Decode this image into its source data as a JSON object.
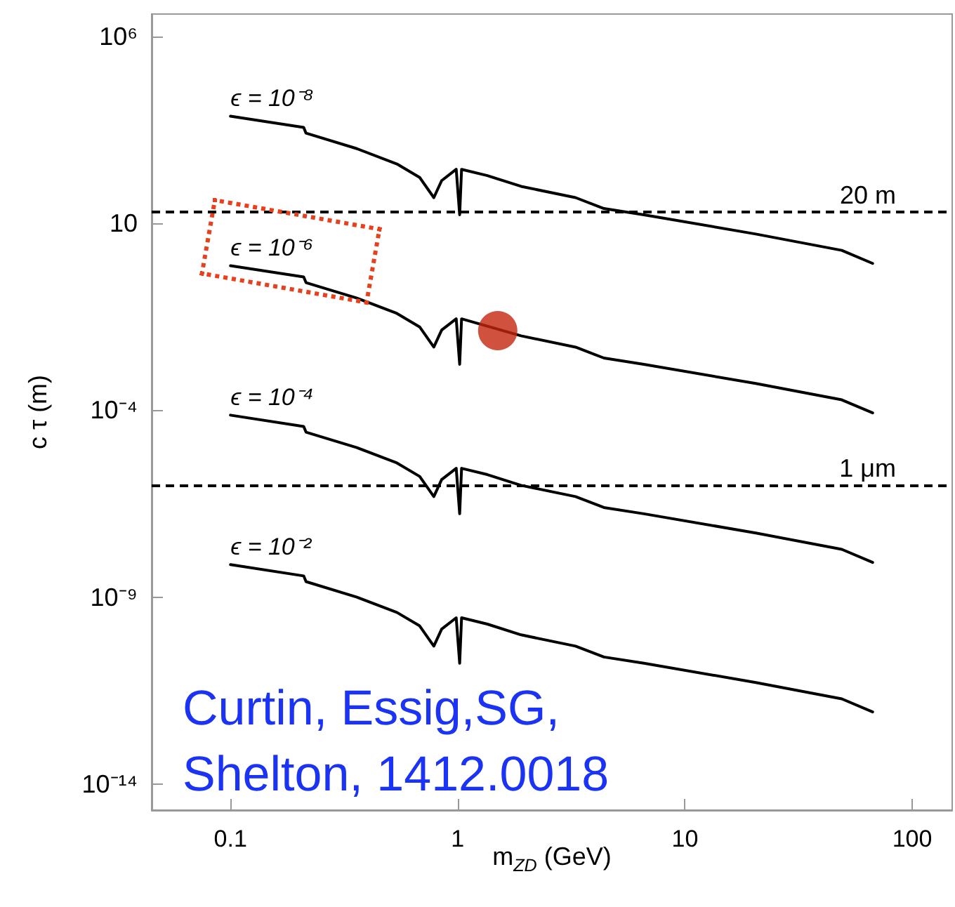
{
  "chart_data": {
    "type": "line",
    "xlabel": "m$_{ZD}$ (GeV)",
    "ylabel": "c τ (m)",
    "log": "xy",
    "xlim": [
      0.045,
      150
    ],
    "ylim": [
      2e-15,
      4000000.0
    ],
    "xticks": [
      0.1,
      1,
      10,
      100
    ],
    "yticks": [
      {
        "value": 1000000.0,
        "label": "10⁶"
      },
      10,
      {
        "value": 0.0001,
        "label": "10⁻⁴"
      },
      {
        "value": 1e-09,
        "label": "10⁻⁹"
      },
      {
        "value": 1e-14,
        "label": "10⁻¹⁴"
      }
    ],
    "grid": false,
    "marker": "none",
    "line_style": "solid",
    "x": [
      0.1,
      0.21,
      0.215,
      0.36,
      0.54,
      0.68,
      0.785,
      0.85,
      0.985,
      1.02,
      1.04,
      1.35,
      1.9,
      3.3,
      4.4,
      6.6,
      20.5,
      49,
      67
    ],
    "series": [
      {
        "name": "ϵ = 10⁻⁸",
        "color": "#000000",
        "values": [
          7400,
          3700,
          2600,
          1000,
          390,
          170,
          49,
          140,
          280,
          17,
          280,
          190,
          98,
          49,
          25,
          17,
          5.2,
          1.9,
          0.85
        ]
      },
      {
        "name": "ϵ = 10⁻⁶",
        "color": "#000000",
        "values": [
          0.74,
          0.37,
          0.26,
          0.1,
          0.039,
          0.017,
          0.0049,
          0.014,
          0.028,
          0.0017,
          0.028,
          null,
          0.0098,
          0.0049,
          0.0025,
          0.0017,
          0.00052,
          0.00019,
          8.5e-05
        ]
      },
      {
        "name": "ϵ = 10⁻⁴",
        "color": "#000000",
        "values": [
          7.4e-05,
          3.7e-05,
          2.6e-05,
          1e-05,
          3.9e-06,
          1.7e-06,
          4.9e-07,
          1.4e-06,
          2.8e-06,
          1.7e-07,
          2.8e-06,
          1.9e-06,
          9.8e-07,
          4.9e-07,
          2.5e-07,
          1.7e-07,
          5.2e-08,
          1.9e-08,
          8.5e-09
        ]
      },
      {
        "name": "ϵ = 10⁻²",
        "color": "#000000",
        "values": [
          7.4e-09,
          3.7e-09,
          2.6e-09,
          1e-09,
          3.9e-10,
          1.7e-10,
          4.9e-11,
          1.4e-10,
          2.8e-10,
          1.7e-11,
          2.8e-10,
          1.9e-10,
          9.8e-11,
          4.9e-11,
          2.5e-11,
          1.7e-11,
          5.2e-12,
          1.9e-12,
          8.5e-13
        ]
      },
      {
        "type": "scatter",
        "marker": "circle",
        "color": "#c4260c",
        "x": [
          1.5
        ],
        "values": [
          0.0135
        ]
      }
    ],
    "ref_lines": [
      {
        "axis": "y",
        "value": 20,
        "label": "20 m",
        "color": "#000000",
        "line_style": "dashed"
      },
      {
        "axis": "y",
        "value": 1e-06,
        "label": "1 μm",
        "color": "#000000",
        "line_style": "dashed"
      }
    ],
    "annotations": [
      "Curtin, Essig,SG,",
      "Shelton, 1412.0018"
    ]
  }
}
